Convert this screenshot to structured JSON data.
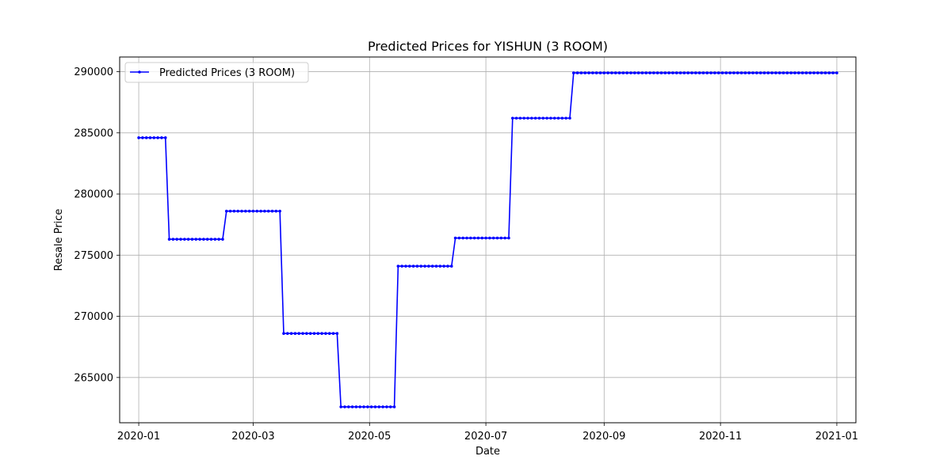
{
  "chart_data": {
    "type": "line",
    "title": "Predicted Prices for YISHUN (3 ROOM)",
    "xlabel": "Date",
    "ylabel": "Resale Price",
    "x_range": [
      "2019-12-22",
      "2021-01-11"
    ],
    "ylim": [
      261300,
      291200
    ],
    "x_ticks": [
      "2020-01",
      "2020-03",
      "2020-05",
      "2020-07",
      "2020-09",
      "2020-11",
      "2021-01"
    ],
    "y_ticks": [
      265000,
      270000,
      275000,
      280000,
      285000,
      290000
    ],
    "grid": true,
    "legend_position": "top-left",
    "series": [
      {
        "name": "Predicted Prices (3 ROOM)",
        "color": "#0000ff",
        "marker": "circle",
        "points_every_days": 2,
        "steps": [
          {
            "from": "2020-01-01",
            "to": "2020-01-15",
            "value": 284600
          },
          {
            "from": "2020-01-17",
            "to": "2020-02-14",
            "value": 276300
          },
          {
            "from": "2020-02-16",
            "to": "2020-03-15",
            "value": 278600
          },
          {
            "from": "2020-03-17",
            "to": "2020-04-14",
            "value": 268600
          },
          {
            "from": "2020-04-16",
            "to": "2020-05-14",
            "value": 262600
          },
          {
            "from": "2020-05-16",
            "to": "2020-06-13",
            "value": 274100
          },
          {
            "from": "2020-06-15",
            "to": "2020-07-13",
            "value": 276400
          },
          {
            "from": "2020-07-15",
            "to": "2020-08-14",
            "value": 286200
          },
          {
            "from": "2020-08-16",
            "to": "2021-01-01",
            "value": 289900
          }
        ]
      }
    ]
  }
}
